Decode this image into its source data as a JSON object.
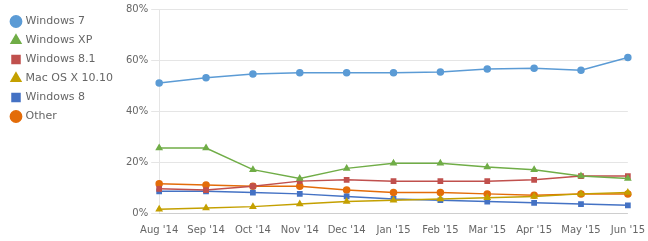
{
  "chart_data": {
    "type": "line",
    "categories": [
      "Aug '14",
      "Sep '14",
      "Oct '14",
      "Nov '14",
      "Dec '14",
      "Jan '15",
      "Feb '15",
      "Mar '15",
      "Apr '15",
      "May '15",
      "Jun '15"
    ],
    "series": [
      {
        "name": "Windows 7",
        "color": "#5b9bd5",
        "marker": "circle",
        "values": [
          51.0,
          53.0,
          54.5,
          55.0,
          55.0,
          55.0,
          55.3,
          56.5,
          56.8,
          56.0,
          61.0
        ]
      },
      {
        "name": "Windows XP",
        "color": "#70ad47",
        "marker": "triangle",
        "values": [
          25.5,
          25.5,
          17.0,
          13.5,
          17.5,
          19.5,
          19.5,
          18.0,
          17.0,
          14.5,
          13.5
        ]
      },
      {
        "name": "Windows 8.1",
        "color": "#c0504d",
        "marker": "square",
        "values": [
          9.5,
          9.0,
          10.5,
          12.5,
          13.0,
          12.5,
          12.5,
          12.5,
          13.0,
          14.5,
          14.5
        ]
      },
      {
        "name": "Mac OS X 10.10",
        "color": "#c4a000",
        "marker": "triangle",
        "values": [
          1.5,
          2.0,
          2.5,
          3.5,
          4.5,
          5.0,
          5.5,
          6.0,
          6.5,
          7.5,
          8.0
        ]
      },
      {
        "name": "Windows 8",
        "color": "#4472c4",
        "marker": "square",
        "values": [
          8.5,
          8.5,
          8.0,
          7.5,
          6.5,
          5.5,
          5.0,
          4.5,
          4.0,
          3.5,
          3.0
        ]
      },
      {
        "name": "Other",
        "color": "#e36c09",
        "marker": "circle",
        "values": [
          11.5,
          11.0,
          10.5,
          10.5,
          9.0,
          8.0,
          8.0,
          7.5,
          7.0,
          7.5,
          7.5
        ]
      }
    ],
    "ylim": [
      0,
      80
    ],
    "yticks": [
      {
        "value": 0,
        "label": "0%"
      },
      {
        "value": 20,
        "label": "20%"
      },
      {
        "value": 40,
        "label": "40%"
      },
      {
        "value": 60,
        "label": "60%"
      },
      {
        "value": 80,
        "label": "80%"
      }
    ],
    "grid": true,
    "legend": "upper left"
  }
}
